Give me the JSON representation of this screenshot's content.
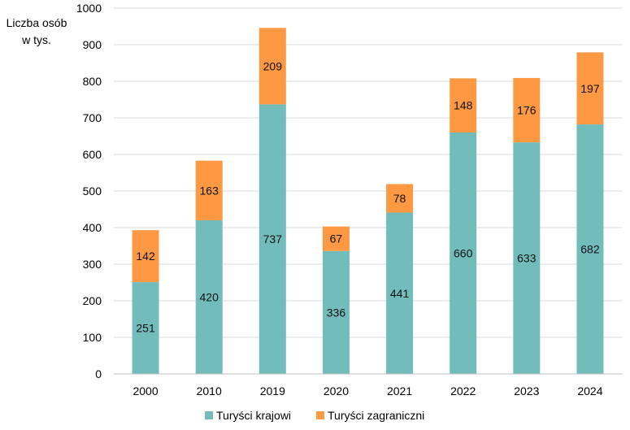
{
  "chart_data": {
    "type": "bar",
    "stacked": true,
    "title": "",
    "ylabel_lines": [
      "Liczba osób",
      "w tys."
    ],
    "xlabel": "",
    "ylim": [
      0,
      1000
    ],
    "yticks": [
      0,
      100,
      200,
      300,
      400,
      500,
      600,
      700,
      800,
      900,
      1000
    ],
    "categories": [
      "2000",
      "2010",
      "2019",
      "2020",
      "2021",
      "2022",
      "2023",
      "2024"
    ],
    "series": [
      {
        "name": "Turyści krajowi",
        "color": "#72bcbc",
        "values": [
          251,
          420,
          737,
          336,
          441,
          660,
          633,
          682
        ]
      },
      {
        "name": "Turyści zagraniczni",
        "color": "#fd9843",
        "values": [
          142,
          163,
          209,
          67,
          78,
          148,
          176,
          197
        ]
      }
    ],
    "legend_position": "bottom",
    "grid": "horizontal"
  }
}
